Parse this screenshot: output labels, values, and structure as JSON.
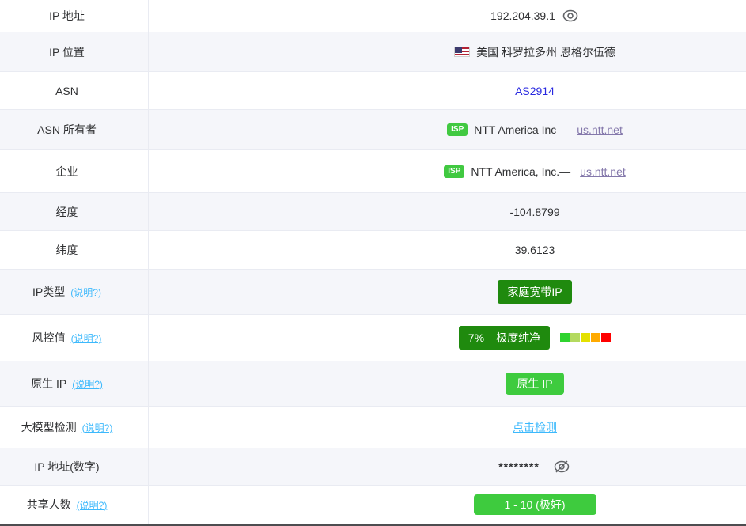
{
  "theme": {
    "stripe_bg": "#f5f6fa",
    "row_border": "#e9ebf2",
    "text_color": "#303133",
    "asn_link_color": "#2929e0",
    "visited_link_color": "#8478ab",
    "help_link_color": "#3db9fc",
    "isp_badge_green": "#41c941",
    "dark_green": "#1f8a0e",
    "bright_green": "#3ecb3e"
  },
  "rows": [
    {
      "label": "IP 地址",
      "value": "192.204.39.1",
      "icon": "eye-icon"
    },
    {
      "label": "IP 位置",
      "flag": "us-flag-icon",
      "value": "美国 科罗拉多州 恩格尔伍德"
    },
    {
      "label": "ASN",
      "link": "AS2914"
    },
    {
      "label": "ASN 所有者",
      "badge": "ISP",
      "name": "NTT America Inc—",
      "link": "us.ntt.net"
    },
    {
      "label": "企业",
      "badge": "ISP",
      "name": "NTT America, Inc.—",
      "link": "us.ntt.net"
    },
    {
      "label": "经度",
      "value": "-104.8799"
    },
    {
      "label": "纬度",
      "value": "39.6123"
    },
    {
      "label": "IP类型",
      "help": "(说明?)",
      "badge_value": "家庭宽带IP"
    },
    {
      "label": "风控值",
      "help": "(说明?)",
      "percent": "7%",
      "verdict": "极度纯净",
      "scale_colors": [
        "#2fd32f",
        "#b4da5f",
        "#e4e000",
        "#ffaa00",
        "#ff0000"
      ]
    },
    {
      "label": "原生 IP",
      "help": "(说明?)",
      "badge_value": "原生 IP"
    },
    {
      "label": "大模型检测",
      "help": "(说明?)",
      "link": "点击检测"
    },
    {
      "label": "IP 地址(数字)",
      "value": "********",
      "icon": "eye-off-icon"
    },
    {
      "label": "共享人数",
      "help": "(说明?)",
      "badge_value": "1 - 10 (极好)"
    }
  ]
}
